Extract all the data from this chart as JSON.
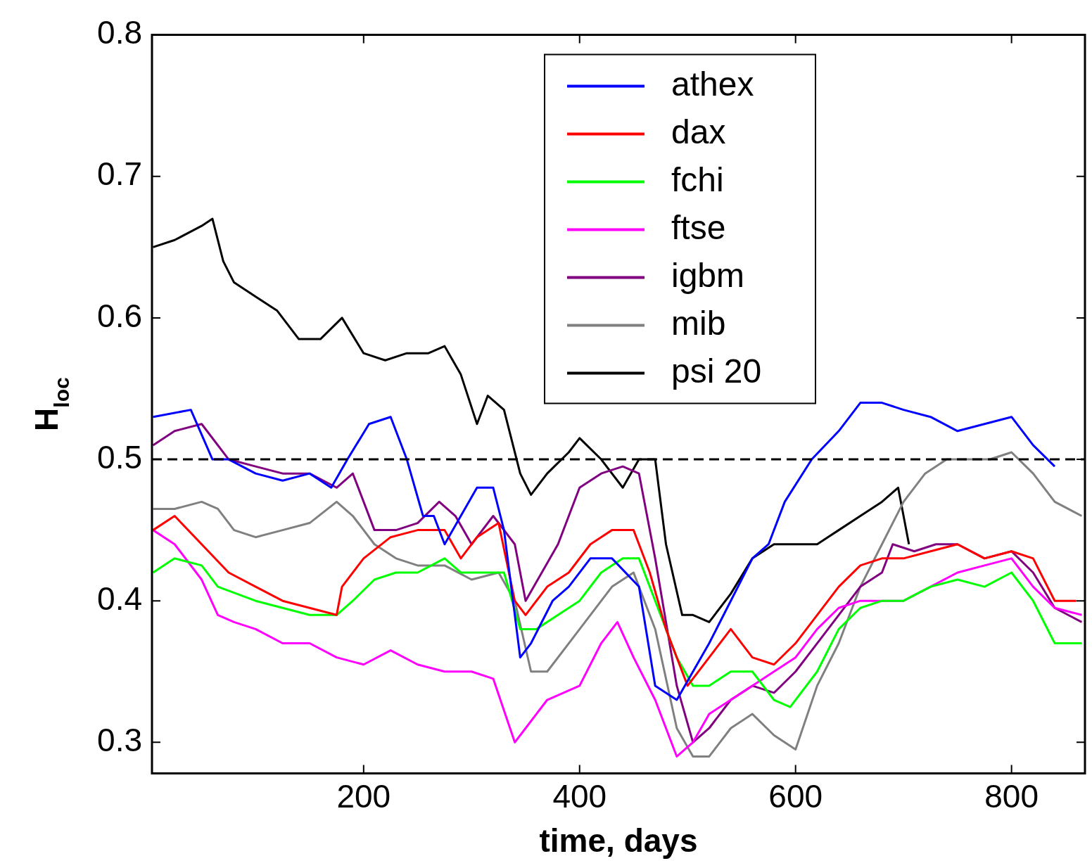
{
  "chart_data": {
    "type": "line",
    "xlabel": "time, days",
    "ylabel": "H$_{loc}$",
    "xlim": [
      4,
      868
    ],
    "ylim": [
      0.278,
      0.8
    ],
    "xticks": [
      200,
      400,
      600,
      800
    ],
    "yticks": [
      0.3,
      0.4,
      0.5,
      0.6,
      0.7,
      0.8
    ],
    "legend": "top",
    "grid": false,
    "marker": "none",
    "line_style": "solid",
    "ref_lines": [
      {
        "axis": "y",
        "value": 0.5,
        "color": "#000000",
        "line_style": "dashed"
      }
    ],
    "series": [
      {
        "name": "athex",
        "color": "#0000ff",
        "x": [
          5,
          40,
          60,
          75,
          100,
          125,
          150,
          170,
          185,
          205,
          225,
          240,
          255,
          265,
          275,
          290,
          305,
          320,
          330,
          345,
          355,
          375,
          390,
          410,
          430,
          455,
          470,
          490,
          505,
          520,
          540,
          560,
          575,
          590,
          615,
          640,
          660,
          680,
          700,
          725,
          750,
          775,
          800,
          820,
          840
        ],
        "values": [
          0.53,
          0.535,
          0.5,
          0.5,
          0.49,
          0.485,
          0.49,
          0.48,
          0.5,
          0.525,
          0.53,
          0.5,
          0.46,
          0.46,
          0.44,
          0.46,
          0.48,
          0.48,
          0.45,
          0.36,
          0.37,
          0.4,
          0.41,
          0.43,
          0.43,
          0.41,
          0.34,
          0.33,
          0.35,
          0.37,
          0.4,
          0.43,
          0.44,
          0.47,
          0.5,
          0.52,
          0.54,
          0.54,
          0.535,
          0.53,
          0.52,
          0.525,
          0.53,
          0.51,
          0.495
        ]
      },
      {
        "name": "dax",
        "color": "#ff0000",
        "x": [
          5,
          25,
          50,
          75,
          100,
          125,
          150,
          175,
          180,
          200,
          225,
          250,
          275,
          290,
          305,
          325,
          340,
          350,
          370,
          390,
          410,
          430,
          450,
          465,
          480,
          500,
          520,
          540,
          560,
          580,
          600,
          620,
          640,
          660,
          680,
          700,
          725,
          750,
          775,
          800,
          820,
          840,
          860
        ],
        "values": [
          0.45,
          0.46,
          0.44,
          0.42,
          0.41,
          0.4,
          0.395,
          0.39,
          0.41,
          0.43,
          0.445,
          0.45,
          0.45,
          0.43,
          0.445,
          0.455,
          0.4,
          0.39,
          0.41,
          0.42,
          0.44,
          0.45,
          0.45,
          0.42,
          0.38,
          0.34,
          0.36,
          0.38,
          0.36,
          0.355,
          0.37,
          0.39,
          0.41,
          0.425,
          0.43,
          0.43,
          0.435,
          0.44,
          0.43,
          0.435,
          0.43,
          0.4,
          0.4
        ]
      },
      {
        "name": "fchi",
        "color": "#00ff00",
        "x": [
          5,
          25,
          50,
          65,
          100,
          125,
          150,
          175,
          190,
          210,
          230,
          250,
          275,
          290,
          310,
          330,
          345,
          360,
          380,
          400,
          420,
          440,
          455,
          470,
          490,
          505,
          520,
          540,
          560,
          580,
          595,
          620,
          640,
          660,
          680,
          700,
          725,
          750,
          775,
          800,
          820,
          840,
          865
        ],
        "values": [
          0.42,
          0.43,
          0.425,
          0.41,
          0.4,
          0.395,
          0.39,
          0.39,
          0.4,
          0.415,
          0.42,
          0.42,
          0.43,
          0.42,
          0.42,
          0.42,
          0.38,
          0.38,
          0.39,
          0.4,
          0.42,
          0.43,
          0.43,
          0.4,
          0.36,
          0.34,
          0.34,
          0.35,
          0.35,
          0.33,
          0.325,
          0.35,
          0.38,
          0.395,
          0.4,
          0.4,
          0.41,
          0.415,
          0.41,
          0.42,
          0.4,
          0.37,
          0.37
        ]
      },
      {
        "name": "ftse",
        "color": "#ff00ff",
        "x": [
          5,
          25,
          50,
          65,
          80,
          100,
          125,
          150,
          175,
          200,
          225,
          250,
          275,
          300,
          320,
          340,
          350,
          370,
          400,
          420,
          435,
          450,
          470,
          490,
          505,
          520,
          540,
          560,
          580,
          600,
          620,
          640,
          660,
          680,
          700,
          725,
          750,
          775,
          800,
          820,
          840,
          865
        ],
        "values": [
          0.45,
          0.44,
          0.415,
          0.39,
          0.385,
          0.38,
          0.37,
          0.37,
          0.36,
          0.355,
          0.365,
          0.355,
          0.35,
          0.35,
          0.345,
          0.3,
          0.31,
          0.33,
          0.34,
          0.37,
          0.385,
          0.36,
          0.33,
          0.29,
          0.3,
          0.32,
          0.33,
          0.34,
          0.35,
          0.36,
          0.38,
          0.395,
          0.4,
          0.4,
          0.4,
          0.41,
          0.42,
          0.425,
          0.43,
          0.41,
          0.395,
          0.39
        ]
      },
      {
        "name": "igbm",
        "color": "#800080",
        "x": [
          5,
          25,
          50,
          75,
          100,
          125,
          150,
          175,
          190,
          210,
          230,
          250,
          270,
          285,
          300,
          320,
          340,
          350,
          365,
          380,
          400,
          420,
          440,
          455,
          470,
          490,
          505,
          520,
          540,
          560,
          580,
          600,
          620,
          640,
          660,
          680,
          690,
          710,
          730,
          750,
          775,
          800,
          820,
          840,
          865
        ],
        "values": [
          0.51,
          0.52,
          0.525,
          0.5,
          0.495,
          0.49,
          0.49,
          0.48,
          0.49,
          0.45,
          0.45,
          0.455,
          0.47,
          0.46,
          0.44,
          0.46,
          0.44,
          0.4,
          0.42,
          0.44,
          0.48,
          0.49,
          0.495,
          0.49,
          0.43,
          0.34,
          0.3,
          0.31,
          0.33,
          0.34,
          0.335,
          0.35,
          0.37,
          0.39,
          0.41,
          0.42,
          0.44,
          0.435,
          0.44,
          0.44,
          0.43,
          0.435,
          0.42,
          0.395,
          0.385
        ]
      },
      {
        "name": "mib",
        "color": "#808080",
        "x": [
          5,
          25,
          50,
          65,
          80,
          100,
          125,
          150,
          175,
          190,
          210,
          230,
          250,
          275,
          300,
          325,
          340,
          355,
          370,
          390,
          410,
          430,
          450,
          470,
          490,
          505,
          520,
          540,
          560,
          580,
          600,
          620,
          640,
          660,
          680,
          700,
          720,
          740,
          760,
          780,
          800,
          820,
          840,
          865
        ],
        "values": [
          0.465,
          0.465,
          0.47,
          0.465,
          0.45,
          0.445,
          0.45,
          0.455,
          0.47,
          0.46,
          0.44,
          0.43,
          0.425,
          0.425,
          0.415,
          0.42,
          0.4,
          0.35,
          0.35,
          0.37,
          0.39,
          0.41,
          0.42,
          0.38,
          0.31,
          0.29,
          0.29,
          0.31,
          0.32,
          0.305,
          0.295,
          0.34,
          0.37,
          0.41,
          0.44,
          0.47,
          0.49,
          0.5,
          0.5,
          0.5,
          0.505,
          0.49,
          0.47,
          0.46
        ]
      },
      {
        "name": "psi 20",
        "color": "#000000",
        "x": [
          5,
          25,
          50,
          60,
          70,
          80,
          100,
          120,
          140,
          160,
          180,
          200,
          220,
          240,
          260,
          275,
          290,
          305,
          315,
          330,
          345,
          355,
          370,
          390,
          400,
          420,
          440,
          455,
          470,
          480,
          495,
          505,
          520,
          540,
          560,
          580,
          600,
          620,
          640,
          660,
          680,
          695,
          700,
          705
        ],
        "values": [
          0.65,
          0.655,
          0.665,
          0.67,
          0.64,
          0.625,
          0.615,
          0.605,
          0.585,
          0.585,
          0.6,
          0.575,
          0.57,
          0.575,
          0.575,
          0.58,
          0.56,
          0.525,
          0.545,
          0.535,
          0.49,
          0.475,
          0.49,
          0.505,
          0.515,
          0.5,
          0.48,
          0.5,
          0.5,
          0.44,
          0.39,
          0.39,
          0.385,
          0.405,
          0.43,
          0.44,
          0.44,
          0.44,
          0.45,
          0.46,
          0.47,
          0.48,
          0.46,
          0.44
        ]
      }
    ]
  }
}
